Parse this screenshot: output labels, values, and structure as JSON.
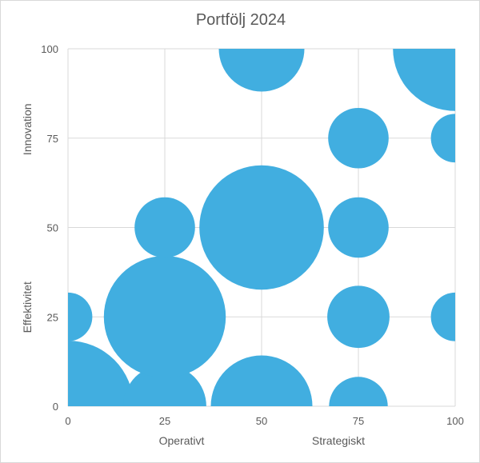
{
  "chart_data": {
    "type": "bubble",
    "title": "Portfölj 2024",
    "x_axis": {
      "min": 0,
      "max": 100,
      "ticks": [
        "0",
        "25",
        "50",
        "75",
        "100"
      ],
      "labels": [
        "Operativt",
        "Strategiskt"
      ]
    },
    "y_axis": {
      "min": 0,
      "max": 100,
      "ticks": [
        "0",
        "25",
        "50",
        "75",
        "100"
      ],
      "labels": [
        "Effektivitet",
        "Innovation"
      ]
    },
    "grid": true,
    "color": "#41aee0",
    "points": [
      {
        "x": 0,
        "y": 0,
        "size": 4
      },
      {
        "x": 25,
        "y": 0,
        "size": 1.6
      },
      {
        "x": 50,
        "y": 0,
        "size": 2.4
      },
      {
        "x": 75,
        "y": 0,
        "size": 0.8
      },
      {
        "x": 0,
        "y": 25,
        "size": 0.55
      },
      {
        "x": 25,
        "y": 25,
        "size": 3.45
      },
      {
        "x": 75,
        "y": 25,
        "size": 0.9
      },
      {
        "x": 100,
        "y": 25,
        "size": 0.55
      },
      {
        "x": 25,
        "y": 50,
        "size": 0.85
      },
      {
        "x": 50,
        "y": 50,
        "size": 3.6
      },
      {
        "x": 75,
        "y": 50,
        "size": 0.85
      },
      {
        "x": 75,
        "y": 75,
        "size": 0.85
      },
      {
        "x": 100,
        "y": 75,
        "size": 0.55
      },
      {
        "x": 50,
        "y": 100,
        "size": 1.7
      },
      {
        "x": 100,
        "y": 100,
        "size": 3.6
      }
    ]
  }
}
